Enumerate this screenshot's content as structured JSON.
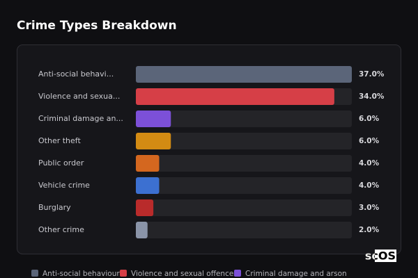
{
  "chart_data": {
    "type": "hbar",
    "title": "Crime Types Breakdown",
    "categories": [
      "Anti-social behavi...",
      "Violence and sexua...",
      "Criminal damage an...",
      "Other theft",
      "Public order",
      "Vehicle crime",
      "Burglary",
      "Other crime"
    ],
    "values": [
      37.0,
      34.0,
      6.0,
      6.0,
      4.0,
      4.0,
      3.0,
      2.0
    ],
    "value_labels": [
      "37.0%",
      "34.0%",
      "6.0%",
      "6.0%",
      "4.0%",
      "4.0%",
      "3.0%",
      "2.0%"
    ],
    "colors": [
      "#5b6579",
      "#d63f47",
      "#7c50d8",
      "#d38b13",
      "#d4671f",
      "#3c70d1",
      "#b92b2b",
      "#8a94a8"
    ],
    "xlim": [
      0,
      37
    ],
    "legend": [
      "Anti-social behaviour",
      "Violence and sexual offences",
      "Criminal damage and arson"
    ],
    "logo": "scOS"
  }
}
